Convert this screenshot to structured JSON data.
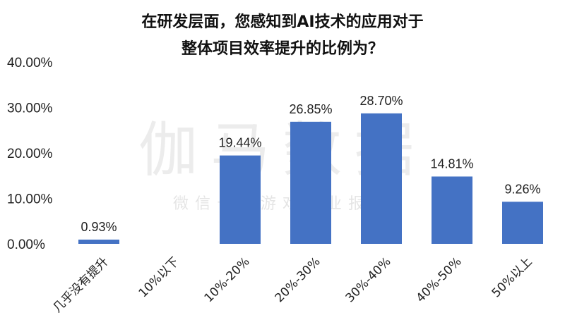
{
  "chart_data": {
    "type": "bar",
    "title_lines": [
      "在研发层面，您感知到AI技术的应用对于",
      "整体项目效率提升的比例为？"
    ],
    "categories": [
      "几乎没有提升",
      "10%以下",
      "10%-20%",
      "20%-30%",
      "30%-40%",
      "40%-50%",
      "50%以上"
    ],
    "values": [
      0.93,
      0,
      19.44,
      26.85,
      28.7,
      14.81,
      9.26
    ],
    "data_labels": [
      "0.93%",
      "",
      "19.44%",
      "26.85%",
      "28.70%",
      "14.81%",
      "9.26%"
    ],
    "y_ticks": [
      "0.00%",
      "10.00%",
      "20.00%",
      "30.00%",
      "40.00%"
    ],
    "ylim": [
      0,
      40
    ],
    "bar_color": "#4472C4",
    "grid": false,
    "legend": "none"
  },
  "watermark": {
    "main": "伽马数据",
    "sub": "微信号：游戏产业报告"
  }
}
